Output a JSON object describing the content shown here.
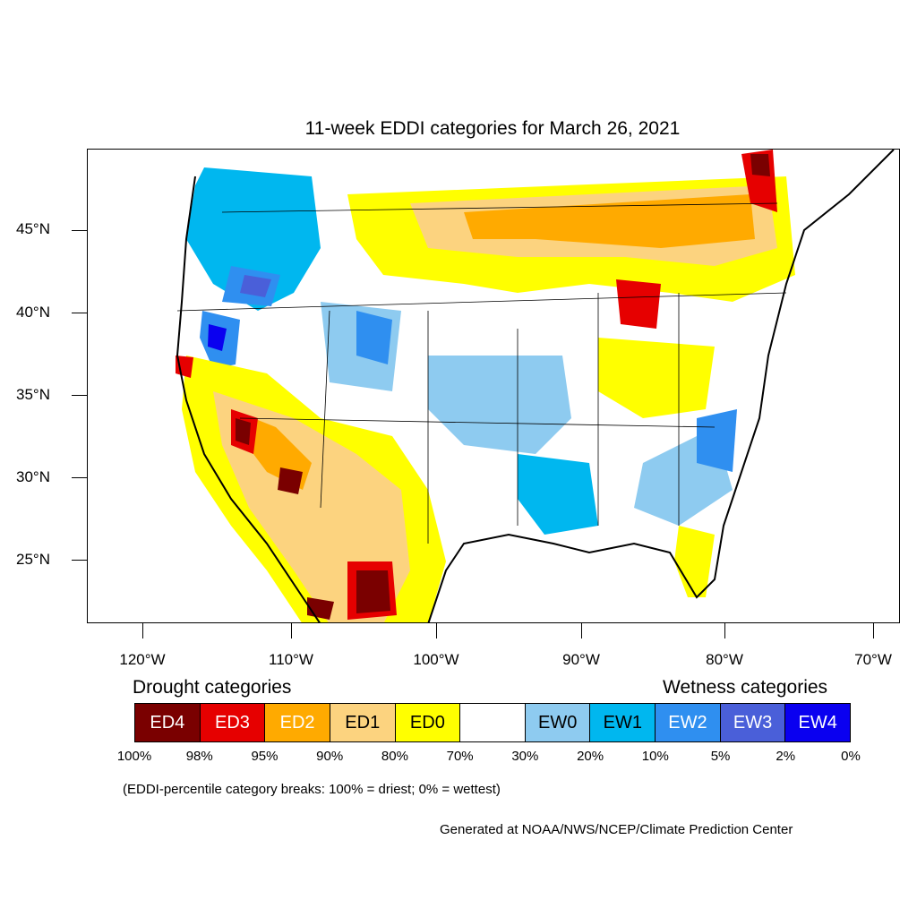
{
  "title": "11-week EDDI categories for March 26, 2021",
  "axes": {
    "lat_ticks": [
      "45°N",
      "40°N",
      "35°N",
      "30°N",
      "25°N"
    ],
    "lon_ticks": [
      "120°W",
      "110°W",
      "100°W",
      "90°W",
      "80°W",
      "70°W"
    ]
  },
  "legend": {
    "drought_title": "Drought categories",
    "wetness_title": "Wetness categories",
    "categories": [
      {
        "label": "ED4",
        "color": "#7a0000",
        "text_color": "#ffffff"
      },
      {
        "label": "ED3",
        "color": "#e60000",
        "text_color": "#ffffff"
      },
      {
        "label": "ED2",
        "color": "#ffaa00",
        "text_color": "#ffffff"
      },
      {
        "label": "ED1",
        "color": "#fcd37f",
        "text_color": "#000000"
      },
      {
        "label": "ED0",
        "color": "#ffff00",
        "text_color": "#000000"
      },
      {
        "label": "",
        "color": "#ffffff",
        "text_color": "#000000"
      },
      {
        "label": "EW0",
        "color": "#8ecbf0",
        "text_color": "#000000"
      },
      {
        "label": "EW1",
        "color": "#00b7ef",
        "text_color": "#000000"
      },
      {
        "label": "EW2",
        "color": "#2f8ff0",
        "text_color": "#ffffff"
      },
      {
        "label": "EW3",
        "color": "#4a5fd9",
        "text_color": "#ffffff"
      },
      {
        "label": "EW4",
        "color": "#0a00f0",
        "text_color": "#ffffff"
      }
    ],
    "breaks": [
      "100%",
      "98%",
      "95%",
      "90%",
      "80%",
      "70%",
      "30%",
      "20%",
      "10%",
      "5%",
      "2%",
      "0%"
    ]
  },
  "note": "(EDDI-percentile category breaks: 100% = driest; 0% = wettest)",
  "credit": "Generated at NOAA/NWS/NCEP/Climate Prediction Center"
}
